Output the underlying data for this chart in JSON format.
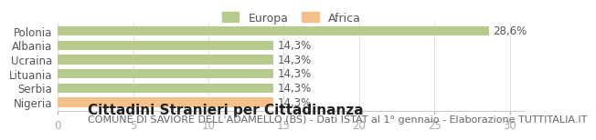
{
  "categories": [
    "Polonia",
    "Albania",
    "Ucraina",
    "Lituania",
    "Serbia",
    "Nigeria"
  ],
  "values": [
    28.6,
    14.3,
    14.3,
    14.3,
    14.3,
    14.3
  ],
  "labels": [
    "28,6%",
    "14,3%",
    "14,3%",
    "14,3%",
    "14,3%",
    "14,3%"
  ],
  "bar_colors": [
    "#b5cc8e",
    "#b5cc8e",
    "#b5cc8e",
    "#b5cc8e",
    "#b5cc8e",
    "#f5c08a"
  ],
  "legend_labels": [
    "Europa",
    "Africa"
  ],
  "legend_colors": [
    "#b5cc8e",
    "#f5c08a"
  ],
  "xlim": [
    0,
    31
  ],
  "xticks": [
    0,
    5,
    10,
    15,
    20,
    25,
    30
  ],
  "title": "Cittadini Stranieri per Cittadinanza",
  "subtitle": "COMUNE DI SAVIORE DELL'ADAMELLO (BS) - Dati ISTAT al 1° gennaio - Elaborazione TUTTITALIA.IT",
  "background_color": "#ffffff",
  "bar_edge_color": "none",
  "title_fontsize": 11,
  "subtitle_fontsize": 8,
  "label_fontsize": 8.5,
  "tick_fontsize": 8.5,
  "ytick_fontsize": 8.5
}
